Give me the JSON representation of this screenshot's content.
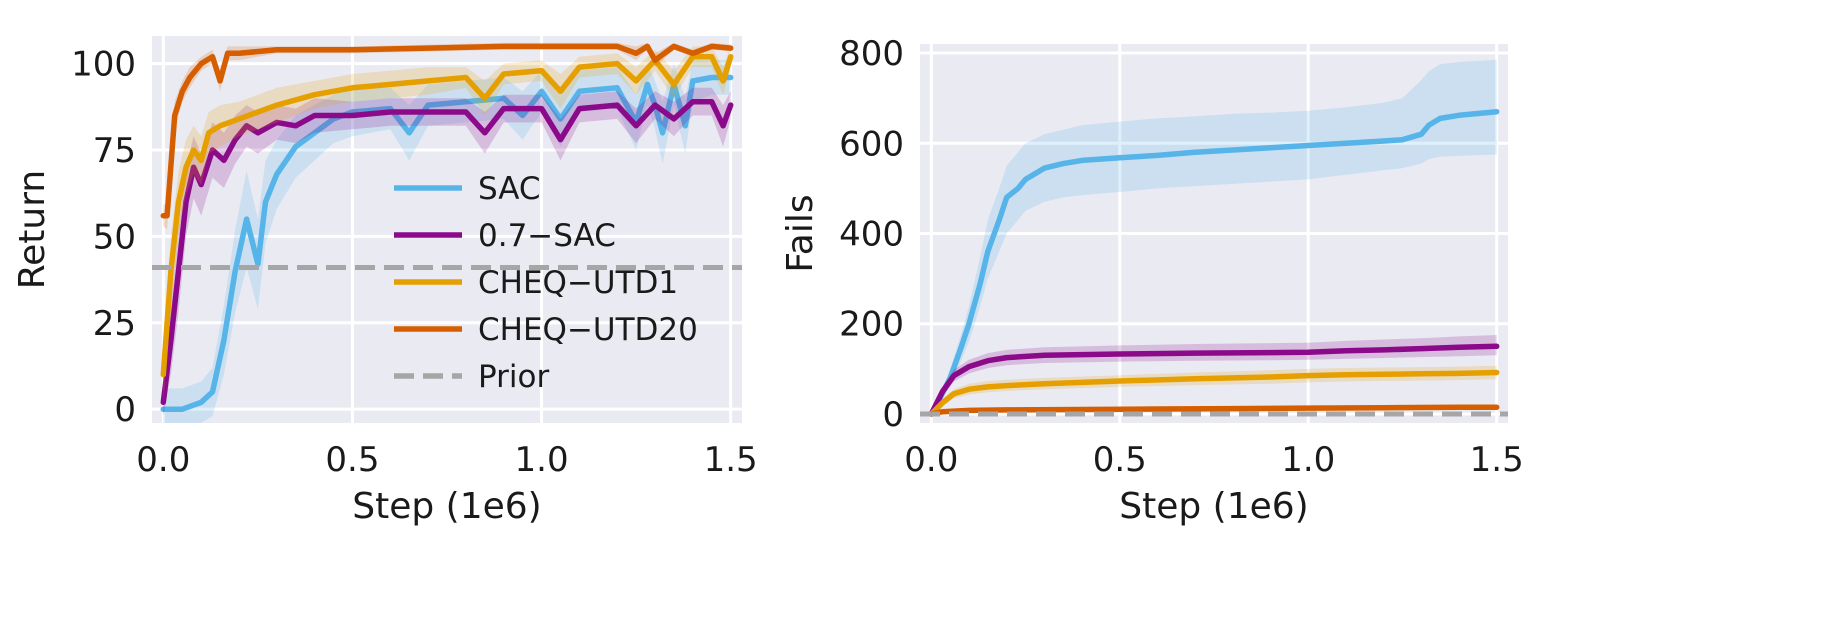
{
  "chart_data": [
    {
      "type": "line",
      "xlabel": "Step (1e6)",
      "ylabel": "Return",
      "xlim": [
        -0.03,
        1.53
      ],
      "ylim": [
        -4,
        108
      ],
      "xticks": [
        "0.0",
        "0.5",
        "1.0",
        "1.5"
      ],
      "yticks": [
        "0",
        "25",
        "50",
        "75",
        "100"
      ],
      "grid": true,
      "legend_position": "center-right",
      "series": [
        {
          "name": "SAC",
          "color": "#56B4E9",
          "x": [
            0,
            0.05,
            0.1,
            0.13,
            0.16,
            0.19,
            0.22,
            0.25,
            0.27,
            0.3,
            0.35,
            0.4,
            0.45,
            0.5,
            0.6,
            0.65,
            0.7,
            0.8,
            0.9,
            0.95,
            1.0,
            1.05,
            1.1,
            1.2,
            1.25,
            1.28,
            1.3,
            1.32,
            1.35,
            1.38,
            1.4,
            1.45,
            1.5
          ],
          "y": [
            0,
            0,
            2,
            5,
            20,
            40,
            55,
            42,
            60,
            68,
            76,
            80,
            84,
            86,
            87,
            80,
            88,
            89,
            90,
            85,
            92,
            84,
            92,
            93,
            83,
            94,
            88,
            80,
            94,
            82,
            95,
            96,
            96
          ],
          "band": [
            6,
            6,
            6,
            7,
            10,
            12,
            14,
            13,
            12,
            10,
            9,
            8,
            7,
            7,
            6,
            8,
            6,
            6,
            6,
            7,
            6,
            8,
            6,
            6,
            8,
            6,
            7,
            9,
            6,
            8,
            6,
            5,
            5
          ]
        },
        {
          "name": "0.7−SAC",
          "color": "#8B0A8A",
          "x": [
            0,
            0.02,
            0.04,
            0.06,
            0.08,
            0.1,
            0.13,
            0.16,
            0.19,
            0.22,
            0.25,
            0.3,
            0.35,
            0.4,
            0.5,
            0.6,
            0.7,
            0.8,
            0.85,
            0.9,
            1.0,
            1.05,
            1.1,
            1.2,
            1.25,
            1.3,
            1.35,
            1.4,
            1.45,
            1.48,
            1.5
          ],
          "y": [
            2,
            20,
            40,
            60,
            70,
            65,
            75,
            72,
            78,
            82,
            80,
            83,
            82,
            85,
            85,
            86,
            86,
            86,
            80,
            87,
            87,
            78,
            87,
            88,
            82,
            88,
            84,
            89,
            89,
            82,
            88
          ],
          "band": [
            4,
            10,
            12,
            10,
            9,
            9,
            8,
            8,
            7,
            6,
            6,
            5,
            5,
            5,
            4,
            4,
            4,
            4,
            6,
            4,
            4,
            6,
            4,
            4,
            5,
            4,
            5,
            4,
            4,
            6,
            4
          ]
        },
        {
          "name": "CHEQ−UTD1",
          "color": "#E69F00",
          "x": [
            0,
            0.02,
            0.04,
            0.06,
            0.08,
            0.1,
            0.12,
            0.15,
            0.2,
            0.3,
            0.4,
            0.5,
            0.6,
            0.7,
            0.8,
            0.85,
            0.9,
            1.0,
            1.05,
            1.1,
            1.2,
            1.25,
            1.3,
            1.35,
            1.4,
            1.45,
            1.48,
            1.5
          ],
          "y": [
            10,
            40,
            60,
            70,
            75,
            72,
            80,
            82,
            84,
            88,
            91,
            93,
            94,
            95,
            96,
            90,
            97,
            98,
            92,
            99,
            100,
            95,
            101,
            94,
            102,
            102,
            95,
            102
          ],
          "band": [
            8,
            10,
            9,
            8,
            7,
            7,
            6,
            6,
            5,
            5,
            4,
            4,
            4,
            4,
            3,
            5,
            3,
            3,
            5,
            3,
            3,
            4,
            3,
            4,
            3,
            3,
            4,
            3
          ]
        },
        {
          "name": "CHEQ−UTD20",
          "color": "#D55E00",
          "x": [
            0,
            0.01,
            0.03,
            0.05,
            0.07,
            0.1,
            0.13,
            0.15,
            0.17,
            0.2,
            0.3,
            0.5,
            0.7,
            0.9,
            1.1,
            1.2,
            1.25,
            1.28,
            1.3,
            1.35,
            1.4,
            1.45,
            1.5
          ],
          "y": [
            56,
            56,
            85,
            92,
            96,
            100,
            102,
            95,
            103,
            103,
            104,
            104,
            104.5,
            105,
            105,
            105,
            103,
            105,
            101,
            105,
            103,
            105,
            104.5
          ],
          "band": [
            3,
            4,
            4,
            3,
            3,
            2,
            2,
            3,
            2,
            2,
            1,
            1,
            1,
            1,
            1,
            1,
            2,
            1,
            2,
            1,
            1,
            1,
            1
          ]
        },
        {
          "name": "Prior",
          "color": "#A6A6A6",
          "dashed": true,
          "x": [
            -0.03,
            1.53
          ],
          "y": [
            41,
            41
          ]
        }
      ]
    },
    {
      "type": "line",
      "xlabel": "Step (1e6)",
      "ylabel": "Fails",
      "xlim": [
        -0.03,
        1.53
      ],
      "ylim": [
        -20,
        820
      ],
      "xticks": [
        "0.0",
        "0.5",
        "1.0",
        "1.5"
      ],
      "yticks": [
        "0",
        "200",
        "400",
        "600",
        "800"
      ],
      "grid": true,
      "series": [
        {
          "name": "SAC",
          "color": "#56B4E9",
          "x": [
            0,
            0.02,
            0.05,
            0.08,
            0.1,
            0.13,
            0.15,
            0.18,
            0.2,
            0.23,
            0.25,
            0.3,
            0.35,
            0.4,
            0.5,
            0.6,
            0.7,
            0.8,
            0.9,
            1.0,
            1.1,
            1.2,
            1.25,
            1.3,
            1.32,
            1.35,
            1.4,
            1.5
          ],
          "y": [
            0,
            30,
            80,
            150,
            200,
            290,
            360,
            430,
            480,
            500,
            520,
            545,
            555,
            562,
            568,
            573,
            580,
            585,
            590,
            595,
            600,
            605,
            608,
            620,
            640,
            655,
            662,
            670
          ],
          "lower": [
            0,
            25,
            60,
            120,
            160,
            240,
            300,
            360,
            400,
            430,
            450,
            470,
            480,
            485,
            492,
            500,
            505,
            510,
            515,
            520,
            530,
            540,
            545,
            555,
            565,
            570,
            572,
            575
          ],
          "upper": [
            0,
            35,
            100,
            180,
            240,
            350,
            430,
            500,
            550,
            580,
            600,
            620,
            630,
            640,
            648,
            655,
            660,
            665,
            668,
            672,
            680,
            690,
            700,
            740,
            760,
            775,
            780,
            785
          ]
        },
        {
          "name": "0.7−SAC",
          "color": "#8B0A8A",
          "x": [
            0,
            0.03,
            0.06,
            0.1,
            0.15,
            0.2,
            0.3,
            0.5,
            0.7,
            0.9,
            1.0,
            1.1,
            1.2,
            1.3,
            1.4,
            1.5
          ],
          "y": [
            0,
            50,
            85,
            105,
            118,
            125,
            130,
            133,
            135,
            136,
            137,
            140,
            142,
            145,
            148,
            150
          ],
          "lower": [
            0,
            40,
            72,
            90,
            102,
            108,
            113,
            116,
            118,
            119,
            120,
            122,
            124,
            126,
            128,
            130
          ],
          "upper": [
            0,
            60,
            98,
            120,
            135,
            142,
            148,
            152,
            155,
            157,
            158,
            162,
            165,
            168,
            172,
            175
          ]
        },
        {
          "name": "CHEQ−UTD1",
          "color": "#E69F00",
          "x": [
            0,
            0.03,
            0.06,
            0.1,
            0.15,
            0.2,
            0.3,
            0.5,
            0.7,
            0.9,
            1.0,
            1.1,
            1.2,
            1.3,
            1.4,
            1.5
          ],
          "y": [
            0,
            25,
            45,
            55,
            60,
            63,
            67,
            73,
            78,
            82,
            85,
            87,
            88,
            89,
            90,
            92
          ],
          "lower": [
            0,
            18,
            35,
            43,
            48,
            51,
            55,
            60,
            64,
            67,
            70,
            72,
            73,
            74,
            75,
            77
          ],
          "upper": [
            0,
            32,
            55,
            67,
            73,
            76,
            80,
            86,
            92,
            97,
            100,
            102,
            103,
            104,
            105,
            107
          ]
        },
        {
          "name": "CHEQ−UTD20",
          "color": "#D55E00",
          "x": [
            0,
            0.03,
            0.1,
            0.2,
            0.4,
            0.6,
            0.8,
            1.0,
            1.2,
            1.4,
            1.5
          ],
          "y": [
            0,
            5,
            8,
            9,
            10,
            11,
            12,
            13,
            14,
            15,
            15
          ],
          "lower": [
            0,
            3,
            6,
            7,
            8,
            9,
            10,
            11,
            12,
            13,
            13
          ],
          "upper": [
            0,
            7,
            10,
            11,
            12,
            13,
            14,
            15,
            16,
            17,
            17
          ]
        },
        {
          "name": "Prior",
          "color": "#A6A6A6",
          "dashed": true,
          "x": [
            -0.03,
            1.53
          ],
          "y": [
            0,
            0
          ]
        }
      ]
    }
  ]
}
